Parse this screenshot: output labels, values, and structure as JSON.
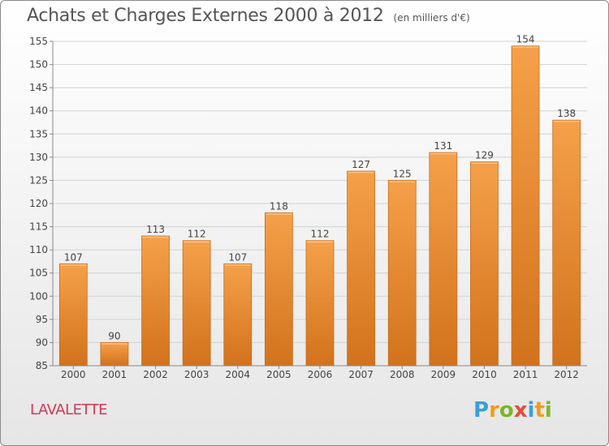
{
  "chart_data": {
    "type": "bar",
    "title": "Achats et Charges Externes 2000 à 2012",
    "subtitle": "(en milliers d'€)",
    "categories": [
      "2000",
      "2001",
      "2002",
      "2003",
      "2004",
      "2005",
      "2006",
      "2007",
      "2008",
      "2009",
      "2010",
      "2011",
      "2012"
    ],
    "values": [
      107,
      90,
      113,
      112,
      107,
      118,
      112,
      127,
      125,
      131,
      129,
      154,
      138
    ],
    "ylim": [
      85,
      155
    ],
    "yticks": [
      85,
      90,
      95,
      100,
      105,
      110,
      115,
      120,
      125,
      130,
      135,
      140,
      145,
      150,
      155
    ],
    "grid": true,
    "bar_color_top": "#f5a04a",
    "bar_color_bottom": "#d2721c"
  },
  "place_name": "LAVALETTE",
  "logo": {
    "letters": [
      "P",
      "r",
      "o",
      "x",
      "i",
      "t",
      "i"
    ],
    "colors": [
      "#3aa0d8",
      "#f39a1c",
      "#79b829",
      "#e84a3a",
      "#3aa0d8",
      "#f39a1c",
      "#79b829"
    ]
  }
}
